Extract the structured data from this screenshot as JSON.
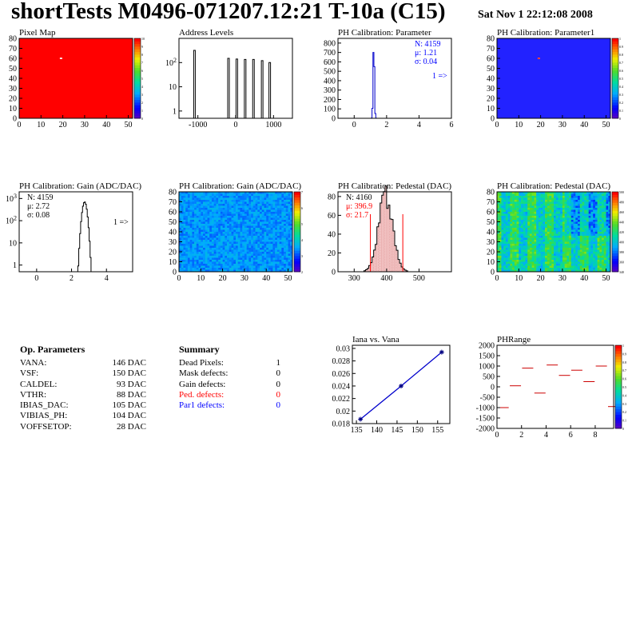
{
  "header": {
    "title": "shortTests M0496-071207.12:21 T-10a (C15)",
    "date": "Sat Nov  1 22:12:08 2008"
  },
  "op_params": {
    "title": "Op. Parameters",
    "rows": [
      {
        "name": "VANA:",
        "value": "146 DAC"
      },
      {
        "name": "VSF:",
        "value": "150 DAC"
      },
      {
        "name": "CALDEL:",
        "value": "93 DAC"
      },
      {
        "name": "VTHR:",
        "value": "88 DAC"
      },
      {
        "name": "IBIAS_DAC:",
        "value": "105 DAC"
      },
      {
        "name": "VIBIAS_PH:",
        "value": "104 DAC"
      },
      {
        "name": "VOFFSETOP:",
        "value": "28 DAC"
      }
    ]
  },
  "summary": {
    "title": "Summary",
    "rows": [
      {
        "name": "Dead Pixels:",
        "value": "1",
        "color": "#000000"
      },
      {
        "name": "Mask defects:",
        "value": "0",
        "color": "#000000"
      },
      {
        "name": "Gain defects:",
        "value": "0",
        "color": "#000000"
      },
      {
        "name": "Ped. defects:",
        "value": "0",
        "color": "#ff0000"
      },
      {
        "name": "Par1 defects:",
        "value": "0",
        "color": "#0000ff"
      }
    ]
  },
  "colors": {
    "red_map": "#ff0000",
    "blue_map": "#2222ff",
    "hist_line": "#000000",
    "blue_line": "#0000cc",
    "red_text": "#ff0000",
    "blue_text": "#0000ff"
  },
  "chart_data": [
    {
      "type": "heatmap",
      "title": "Pixel Map",
      "xlim": [
        0,
        52
      ],
      "ylim": [
        0,
        80
      ],
      "xticks": [
        "0",
        "10",
        "20",
        "30",
        "40",
        "50"
      ],
      "yticks": [
        "0",
        "10",
        "20",
        "30",
        "40",
        "50",
        "60",
        "70",
        "80"
      ],
      "fill": "red",
      "anomalies": [
        {
          "x": 19,
          "y": 60
        }
      ],
      "colorbar_ticks": [
        "0",
        "1",
        "2",
        "3",
        "4",
        "5",
        "6",
        "7",
        "8",
        "9",
        "10"
      ]
    },
    {
      "type": "line",
      "title": "Address Levels",
      "yscale": "log",
      "xlim": [
        -1500,
        1500
      ],
      "ylim": [
        0.5,
        1000
      ],
      "xticks": [
        "-1000",
        "0",
        "1000"
      ],
      "yticks": [
        "1",
        "10",
        "10^2"
      ],
      "peaks": [
        {
          "x": -1090,
          "height": 320
        },
        {
          "x": -190,
          "height": 150
        },
        {
          "x": 30,
          "height": 140
        },
        {
          "x": 250,
          "height": 135
        },
        {
          "x": 470,
          "height": 135
        },
        {
          "x": 700,
          "height": 120
        },
        {
          "x": 900,
          "height": 100
        }
      ]
    },
    {
      "type": "line",
      "title": "PH Calibration: Parameter",
      "xlim": [
        -1,
        6
      ],
      "ylim": [
        0,
        850
      ],
      "xticks": [
        "0",
        "2",
        "4",
        "6"
      ],
      "yticks": [
        "0",
        "100",
        "200",
        "300",
        "400",
        "500",
        "600",
        "700",
        "800"
      ],
      "stats": {
        "n": "N: 4159",
        "mean": "μ: 1.21",
        "sigma": "σ: 0.04"
      },
      "overflow_label": "1 =>",
      "peak": {
        "center": 1.21,
        "sigma": 0.04,
        "height": 820
      }
    },
    {
      "type": "heatmap",
      "title": "PH Calibration: Parameter1",
      "xlim": [
        0,
        52
      ],
      "ylim": [
        0,
        80
      ],
      "xticks": [
        "0",
        "10",
        "20",
        "30",
        "40",
        "50"
      ],
      "yticks": [
        "0",
        "10",
        "20",
        "30",
        "40",
        "50",
        "60",
        "70",
        "80"
      ],
      "fill": "blue",
      "anomalies": [
        {
          "x": 19,
          "y": 60
        }
      ],
      "colorbar_ticks": [
        "0",
        "0.1",
        "0.2",
        "0.3",
        "0.4",
        "0.5",
        "0.6",
        "0.7",
        "0.8",
        "0.9",
        "1"
      ]
    },
    {
      "type": "line",
      "title": "PH Calibration: Gain (ADC/DAC)",
      "yscale": "log",
      "xlim": [
        -1,
        5.5
      ],
      "ylim": [
        0.5,
        2000
      ],
      "xticks": [
        "0",
        "2",
        "4"
      ],
      "yticks": [
        "1",
        "10",
        "10^2",
        "10^3"
      ],
      "stats": {
        "n": "N: 4159",
        "mean": "μ: 2.72",
        "sigma": "σ: 0.08"
      },
      "overflow_label": "1 =>",
      "peak": {
        "center": 2.75,
        "sigma": 0.1,
        "height": 700
      }
    },
    {
      "type": "heatmap",
      "title": "PH Calibration: Gain (ADC/DAC)",
      "xlim": [
        0,
        52
      ],
      "ylim": [
        0,
        80
      ],
      "xticks": [
        "0",
        "10",
        "20",
        "30",
        "40",
        "50"
      ],
      "yticks": [
        "0",
        "10",
        "20",
        "30",
        "40",
        "50",
        "60",
        "70",
        "80"
      ],
      "fill": "blue_noise",
      "colorbar_ticks": [
        "2",
        "3",
        "4",
        "5",
        "6",
        "7"
      ]
    },
    {
      "type": "bar",
      "title": "PH Calibration: Pedestal (DAC)",
      "xlim": [
        250,
        600
      ],
      "ylim": [
        0,
        85
      ],
      "xticks": [
        "300",
        "400",
        "500"
      ],
      "yticks": [
        "0",
        "20",
        "40",
        "60",
        "80"
      ],
      "stats": {
        "n": "N: 4160",
        "mean": "μ: 396.9",
        "sigma": "σ: 21.7"
      },
      "peak": {
        "center": 396.9,
        "sigma": 21.7,
        "height": 80
      },
      "cuts": [
        350,
        450
      ]
    },
    {
      "type": "heatmap",
      "title": "PH Calibration: Pedestal (DAC)",
      "xlim": [
        0,
        52
      ],
      "ylim": [
        0,
        80
      ],
      "xticks": [
        "0",
        "10",
        "20",
        "30",
        "40",
        "50"
      ],
      "yticks": [
        "0",
        "10",
        "20",
        "30",
        "40",
        "50",
        "60",
        "70",
        "80"
      ],
      "fill": "pedestal_noise",
      "colorbar_ticks": [
        "340",
        "360",
        "380",
        "400",
        "420",
        "440",
        "460",
        "480",
        "500"
      ]
    },
    {
      "type": "scatter",
      "title": "Iana vs. Vana",
      "xlim": [
        134,
        158
      ],
      "ylim": [
        0.018,
        0.0305
      ],
      "xticks": [
        "135",
        "140",
        "145",
        "150",
        "155"
      ],
      "yticks": [
        "0.018",
        "0.02",
        "0.022",
        "0.024",
        "0.026",
        "0.028",
        "0.03"
      ],
      "x": [
        136,
        146,
        156
      ],
      "y": [
        0.0187,
        0.024,
        0.0294
      ]
    },
    {
      "type": "scatter",
      "title": "PHRange",
      "xlim": [
        0,
        9.5
      ],
      "ylim": [
        -2000,
        2000
      ],
      "xticks": [
        "0",
        "2",
        "4",
        "6",
        "8"
      ],
      "yticks": [
        "-2000",
        "-1500",
        "-1000",
        "-500",
        "0",
        "500",
        "1000",
        "1500",
        "2000"
      ],
      "x": [
        0.5,
        1.5,
        2.5,
        3.5,
        4.5,
        5.5,
        6.5,
        7.5,
        8.5,
        9.5
      ],
      "y": [
        -1000,
        50,
        900,
        -300,
        1050,
        550,
        800,
        250,
        1000,
        -950
      ],
      "colorbar_ticks": [
        "0",
        "0.1",
        "0.2",
        "0.3",
        "0.4",
        "0.5",
        "0.6",
        "0.7",
        "0.8",
        "0.9",
        "1"
      ]
    }
  ]
}
